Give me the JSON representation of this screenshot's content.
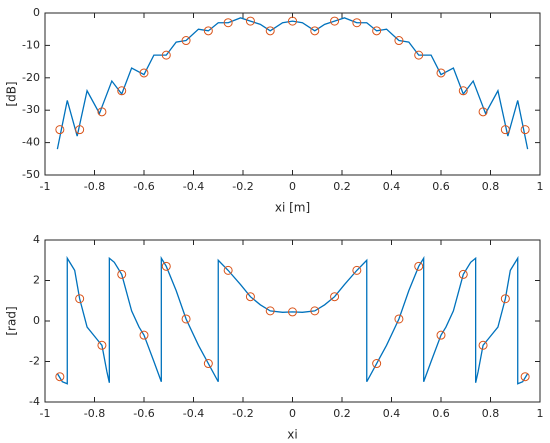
{
  "chart_data": [
    {
      "type": "line",
      "xlabel": "xi [m]",
      "ylabel": "[dB]",
      "grid": false,
      "xlim": [
        -1,
        1
      ],
      "xticks": [
        -1,
        -0.8,
        -0.6,
        -0.4,
        -0.2,
        0,
        0.2,
        0.4,
        0.6,
        0.8,
        1
      ],
      "ylim": [
        -50,
        0
      ],
      "yticks": [
        -50,
        -40,
        -30,
        -20,
        -10,
        0
      ],
      "series": [
        {
          "color": "#0072bd",
          "marker": "none",
          "linestyle": "solid",
          "x": [
            -0.95,
            -0.91,
            -0.87,
            -0.83,
            -0.78,
            -0.73,
            -0.69,
            -0.65,
            -0.6,
            -0.56,
            -0.51,
            -0.47,
            -0.43,
            -0.38,
            -0.34,
            -0.3,
            -0.26,
            -0.21,
            -0.17,
            -0.13,
            -0.09,
            -0.04,
            0,
            0.04,
            0.09,
            0.13,
            0.17,
            0.21,
            0.26,
            0.3,
            0.34,
            0.38,
            0.43,
            0.47,
            0.51,
            0.56,
            0.6,
            0.65,
            0.69,
            0.73,
            0.78,
            0.83,
            0.87,
            0.91,
            0.95
          ],
          "values": [
            -42,
            -27,
            -38,
            -24,
            -31,
            -21,
            -25,
            -17,
            -19,
            -13,
            -13,
            -9,
            -8.5,
            -5,
            -5.5,
            -3,
            -3,
            -1.5,
            -2.5,
            -3.5,
            -5.5,
            -3,
            -2.5,
            -3,
            -5.5,
            -3.5,
            -2.5,
            -1.5,
            -3,
            -3,
            -5.5,
            -5,
            -8.5,
            -9,
            -13,
            -13,
            -19,
            -17,
            -25,
            -21,
            -31,
            -24,
            -38,
            -27,
            -42
          ]
        },
        {
          "color": "#d95319",
          "marker": "circle",
          "linestyle": "none",
          "x": [
            -0.94,
            -0.86,
            -0.77,
            -0.69,
            -0.6,
            -0.51,
            -0.43,
            -0.34,
            -0.26,
            -0.17,
            -0.09,
            0,
            0.09,
            0.17,
            0.26,
            0.34,
            0.43,
            0.51,
            0.6,
            0.69,
            0.77,
            0.86,
            0.94
          ],
          "values": [
            -36,
            -36,
            -30.5,
            -24,
            -18.5,
            -13,
            -8.5,
            -5.5,
            -3,
            -2.5,
            -5.5,
            -2.5,
            -5.5,
            -2.5,
            -3,
            -5.5,
            -8.5,
            -13,
            -18.5,
            -24,
            -30.5,
            -36,
            -36
          ]
        }
      ]
    },
    {
      "type": "line",
      "xlabel": "xi",
      "ylabel": "[rad]",
      "grid": false,
      "xlim": [
        -1,
        1
      ],
      "xticks": [
        -1,
        -0.8,
        -0.6,
        -0.4,
        -0.2,
        0,
        0.2,
        0.4,
        0.6,
        0.8,
        1
      ],
      "ylim": [
        -4,
        4
      ],
      "yticks": [
        -4,
        -2,
        0,
        2,
        4
      ],
      "series": [
        {
          "color": "#0072bd",
          "marker": "none",
          "linestyle": "solid",
          "x": [
            -0.95,
            -0.93,
            -0.91,
            -0.91,
            -0.88,
            -0.86,
            -0.83,
            -0.79,
            -0.77,
            -0.75,
            -0.74,
            -0.74,
            -0.72,
            -0.69,
            -0.65,
            -0.62,
            -0.6,
            -0.56,
            -0.53,
            -0.53,
            -0.51,
            -0.47,
            -0.43,
            -0.38,
            -0.34,
            -0.3,
            -0.3,
            -0.26,
            -0.21,
            -0.17,
            -0.13,
            -0.09,
            -0.04,
            0,
            0.04,
            0.09,
            0.13,
            0.17,
            0.21,
            0.26,
            0.3,
            0.3,
            0.34,
            0.38,
            0.43,
            0.47,
            0.51,
            0.53,
            0.53,
            0.56,
            0.6,
            0.62,
            0.65,
            0.69,
            0.72,
            0.74,
            0.74,
            0.75,
            0.77,
            0.79,
            0.83,
            0.86,
            0.88,
            0.91,
            0.91,
            0.93,
            0.95
          ],
          "values": [
            -2.6,
            -3.0,
            -3.1,
            3.1,
            2.5,
            1.1,
            -0.3,
            -0.9,
            -1.2,
            -2.5,
            -3.05,
            3.1,
            2.9,
            2.3,
            0.5,
            -0.3,
            -0.7,
            -2.0,
            -3.0,
            3.1,
            2.7,
            1.5,
            0.1,
            -1.2,
            -2.1,
            -3.0,
            3.0,
            2.5,
            1.8,
            1.2,
            0.8,
            0.5,
            0.43,
            0.45,
            0.43,
            0.5,
            0.8,
            1.2,
            1.8,
            2.5,
            3.0,
            -3.0,
            -2.1,
            -1.2,
            0.1,
            1.5,
            2.7,
            3.1,
            -3.0,
            -2.0,
            -0.7,
            -0.3,
            0.5,
            2.3,
            2.9,
            3.1,
            -3.05,
            -2.5,
            -1.2,
            -0.9,
            -0.3,
            1.1,
            2.5,
            3.1,
            -3.1,
            -3.0,
            -2.6
          ]
        },
        {
          "color": "#d95319",
          "marker": "circle",
          "linestyle": "none",
          "x": [
            -0.94,
            -0.86,
            -0.77,
            -0.69,
            -0.6,
            -0.51,
            -0.43,
            -0.34,
            -0.26,
            -0.17,
            -0.09,
            0,
            0.09,
            0.17,
            0.26,
            0.34,
            0.43,
            0.51,
            0.6,
            0.69,
            0.77,
            0.86,
            0.94
          ],
          "values": [
            -2.75,
            1.1,
            -1.2,
            2.3,
            -0.7,
            2.7,
            0.1,
            -2.1,
            2.5,
            1.2,
            0.5,
            0.45,
            0.5,
            1.2,
            2.5,
            -2.1,
            0.1,
            2.7,
            -0.7,
            2.3,
            -1.2,
            1.1,
            -2.75
          ]
        }
      ]
    }
  ]
}
